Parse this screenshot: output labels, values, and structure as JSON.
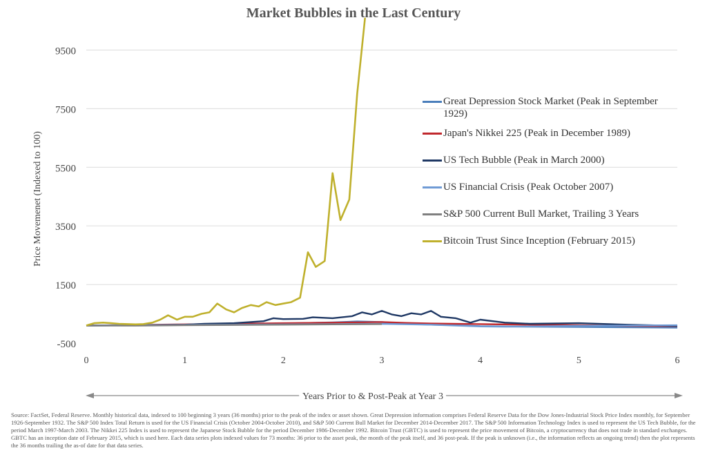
{
  "chart_data": {
    "type": "line",
    "title": "Market Bubbles in the Last Century",
    "xlabel": "Years Prior to & Post-Peak at Year 3",
    "ylabel": "Price Movemenet (Indexed to 100)",
    "xlim": [
      0,
      6
    ],
    "ylim": [
      -500,
      10500
    ],
    "x_ticks": [
      0,
      1,
      2,
      3,
      4,
      5,
      6
    ],
    "y_ticks": [
      -500,
      1500,
      3500,
      5500,
      7500,
      9500
    ],
    "grid": true,
    "legend_position": "right",
    "series": [
      {
        "name": "Great Depression Stock Market (Peak in September 1929)",
        "color": "#4a7ebb",
        "x": [
          0,
          0.5,
          1,
          1.5,
          2,
          2.5,
          2.75,
          3,
          3.25,
          3.5,
          3.75,
          4,
          4.5,
          5,
          5.5,
          6
        ],
        "y": [
          100,
          110,
          130,
          150,
          170,
          210,
          240,
          220,
          160,
          130,
          110,
          80,
          60,
          50,
          40,
          30
        ]
      },
      {
        "name": "Japan's Nikkei 225 (Peak in December 1989)",
        "color": "#c0282d",
        "x": [
          0,
          0.5,
          1,
          1.5,
          2,
          2.5,
          2.75,
          3,
          3.25,
          3.5,
          4,
          4.5,
          5,
          5.5,
          6
        ],
        "y": [
          100,
          120,
          140,
          160,
          180,
          200,
          210,
          220,
          190,
          170,
          150,
          130,
          110,
          90,
          80
        ]
      },
      {
        "name": "US Tech Bubble (Peak in March 2000)",
        "color": "#1f3864",
        "x": [
          0,
          0.5,
          1,
          1.2,
          1.5,
          1.8,
          1.9,
          2,
          2.2,
          2.3,
          2.5,
          2.7,
          2.8,
          2.9,
          3,
          3.1,
          3.2,
          3.3,
          3.4,
          3.5,
          3.6,
          3.75,
          3.9,
          4,
          4.25,
          4.5,
          5,
          5.5,
          6
        ],
        "y": [
          100,
          110,
          130,
          160,
          180,
          250,
          350,
          320,
          330,
          380,
          350,
          420,
          550,
          480,
          600,
          480,
          420,
          520,
          480,
          600,
          400,
          350,
          200,
          300,
          200,
          160,
          180,
          130,
          90
        ]
      },
      {
        "name": "US Financial Crisis (Peak October 2007)",
        "color": "#6f9bd5",
        "x": [
          0,
          0.5,
          1,
          1.5,
          2,
          2.5,
          3,
          3.5,
          4,
          4.25,
          4.5,
          5,
          5.5,
          6
        ],
        "y": [
          100,
          110,
          120,
          130,
          140,
          150,
          160,
          130,
          70,
          60,
          70,
          90,
          100,
          110
        ]
      },
      {
        "name": "S&P 500 Current Bull Market, Trailing 3 Years",
        "color": "#7f7f7f",
        "x": [
          0,
          0.5,
          1,
          1.5,
          2,
          2.5,
          3
        ],
        "y": [
          100,
          95,
          110,
          120,
          130,
          140,
          150
        ]
      },
      {
        "name": "Bitcoin Trust Since Inception (February 2015)",
        "color": "#bfb02c",
        "x": [
          0,
          0.08,
          0.17,
          0.25,
          0.33,
          0.42,
          0.5,
          0.58,
          0.67,
          0.75,
          0.83,
          0.92,
          1,
          1.08,
          1.17,
          1.25,
          1.33,
          1.42,
          1.5,
          1.58,
          1.67,
          1.75,
          1.83,
          1.92,
          2,
          2.08,
          2.17,
          2.25,
          2.33,
          2.42,
          2.5,
          2.58,
          2.67,
          2.75,
          2.83
        ],
        "y": [
          100,
          180,
          200,
          180,
          160,
          150,
          140,
          150,
          200,
          300,
          450,
          300,
          400,
          400,
          500,
          550,
          850,
          650,
          550,
          700,
          800,
          750,
          900,
          800,
          850,
          900,
          1050,
          2600,
          2100,
          2300,
          5300,
          3700,
          4400,
          8000,
          10600
        ]
      }
    ]
  },
  "source_note": "Source: FactSet, Federal Reserve. Monthly historical data, indexed to 100 beginning 3 years (36 months) prior to the peak of the index or asset shown. Great Depression information comprises Federal Reserve Data for the Dow Jones-Industrial Stock Price Index monthly, for September 1926-September 1932. The S&P 500 Index Total Return is used for the US Financial Crisis (October 2004-October 2010), and S&P 500 Current Bull Market for December 2014-December 2017. The S&P 500 Information Technology Index is used to represent the US Tech Bubble, for the period March 1997-March 2003. The Nikkei 225 Index is used to represent the Japanese Stock Bubble for the period December 1986-December 1992. Bitcoin Trust (GBTC) is used to represent the price movement of Bitcoin,  a cryptocurrency that does not trade in standard exchanges. GBTC has an inception date of February 2015, which is used here. Each data series plots indexed values for 73 months: 36 prior to the asset peak, the month of the peak itself, and 36 post-peak. If the peak is unknown (i.e., the information reflects an ongoing trend) then the plot represents the 36 months trailing the as-of date for that data series."
}
